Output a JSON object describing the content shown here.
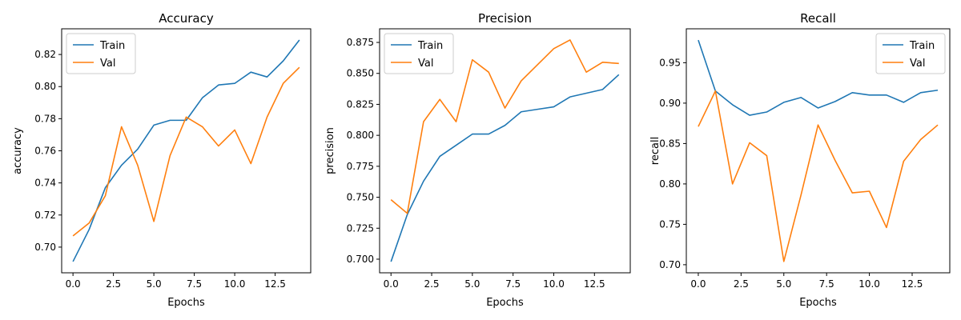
{
  "chart_data": [
    {
      "type": "line",
      "title": "Accuracy",
      "xlabel": "Epochs",
      "ylabel": "accuracy",
      "x": [
        0,
        1,
        2,
        3,
        4,
        5,
        6,
        7,
        8,
        9,
        10,
        11,
        12,
        13,
        14
      ],
      "xlim": [
        -0.7,
        14.7
      ],
      "ylim": [
        0.684,
        0.836
      ],
      "xticks": [
        0.0,
        2.5,
        5.0,
        7.5,
        10.0,
        12.5
      ],
      "xtick_labels": [
        "0.0",
        "2.5",
        "5.0",
        "7.5",
        "10.0",
        "12.5"
      ],
      "yticks": [
        0.7,
        0.72,
        0.74,
        0.76,
        0.78,
        0.8,
        0.82
      ],
      "ytick_labels": [
        "0.70",
        "0.72",
        "0.74",
        "0.76",
        "0.78",
        "0.80",
        "0.82"
      ],
      "legend": "top-left",
      "grid": false,
      "series": [
        {
          "name": "Train",
          "color": "#1f77b4",
          "values": [
            0.691,
            0.711,
            0.737,
            0.751,
            0.761,
            0.776,
            0.779,
            0.779,
            0.793,
            0.801,
            0.802,
            0.809,
            0.806,
            0.816,
            0.829
          ]
        },
        {
          "name": "Val",
          "color": "#ff7f0e",
          "values": [
            0.707,
            0.715,
            0.732,
            0.775,
            0.751,
            0.716,
            0.757,
            0.781,
            0.775,
            0.763,
            0.773,
            0.752,
            0.781,
            0.802,
            0.812
          ]
        }
      ]
    },
    {
      "type": "line",
      "title": "Precision",
      "xlabel": "Epochs",
      "ylabel": "precision",
      "x": [
        0,
        1,
        2,
        3,
        4,
        5,
        6,
        7,
        8,
        9,
        10,
        11,
        12,
        13,
        14
      ],
      "xlim": [
        -0.7,
        14.7
      ],
      "ylim": [
        0.689,
        0.886
      ],
      "xticks": [
        0.0,
        2.5,
        5.0,
        7.5,
        10.0,
        12.5
      ],
      "xtick_labels": [
        "0.0",
        "2.5",
        "5.0",
        "7.5",
        "10.0",
        "12.5"
      ],
      "yticks": [
        0.7,
        0.725,
        0.75,
        0.775,
        0.8,
        0.825,
        0.85,
        0.875
      ],
      "ytick_labels": [
        "0.700",
        "0.725",
        "0.750",
        "0.775",
        "0.800",
        "0.825",
        "0.850",
        "0.875"
      ],
      "legend": "top-left",
      "grid": false,
      "series": [
        {
          "name": "Train",
          "color": "#1f77b4",
          "values": [
            0.698,
            0.736,
            0.763,
            0.783,
            0.792,
            0.801,
            0.801,
            0.808,
            0.819,
            0.821,
            0.823,
            0.831,
            0.834,
            0.837,
            0.849
          ]
        },
        {
          "name": "Val",
          "color": "#ff7f0e",
          "values": [
            0.748,
            0.737,
            0.811,
            0.829,
            0.811,
            0.861,
            0.851,
            0.822,
            0.844,
            0.857,
            0.87,
            0.877,
            0.851,
            0.859,
            0.858
          ]
        }
      ]
    },
    {
      "type": "line",
      "title": "Recall",
      "xlabel": "Epochs",
      "ylabel": "recall",
      "x": [
        0,
        1,
        2,
        3,
        4,
        5,
        6,
        7,
        8,
        9,
        10,
        11,
        12,
        13,
        14
      ],
      "xlim": [
        -0.7,
        14.7
      ],
      "ylim": [
        0.69,
        0.992
      ],
      "xticks": [
        0.0,
        2.5,
        5.0,
        7.5,
        10.0,
        12.5
      ],
      "xtick_labels": [
        "0.0",
        "2.5",
        "5.0",
        "7.5",
        "10.0",
        "12.5"
      ],
      "yticks": [
        0.7,
        0.75,
        0.8,
        0.85,
        0.9,
        0.95
      ],
      "ytick_labels": [
        "0.70",
        "0.75",
        "0.80",
        "0.85",
        "0.90",
        "0.95"
      ],
      "legend": "top-right",
      "grid": false,
      "series": [
        {
          "name": "Train",
          "color": "#1f77b4",
          "values": [
            0.978,
            0.915,
            0.898,
            0.885,
            0.889,
            0.901,
            0.907,
            0.894,
            0.902,
            0.913,
            0.91,
            0.91,
            0.901,
            0.913,
            0.916
          ]
        },
        {
          "name": "Val",
          "color": "#ff7f0e",
          "values": [
            0.871,
            0.915,
            0.8,
            0.851,
            0.835,
            0.704,
            0.786,
            0.873,
            0.829,
            0.789,
            0.791,
            0.746,
            0.828,
            0.855,
            0.873
          ]
        }
      ]
    }
  ]
}
